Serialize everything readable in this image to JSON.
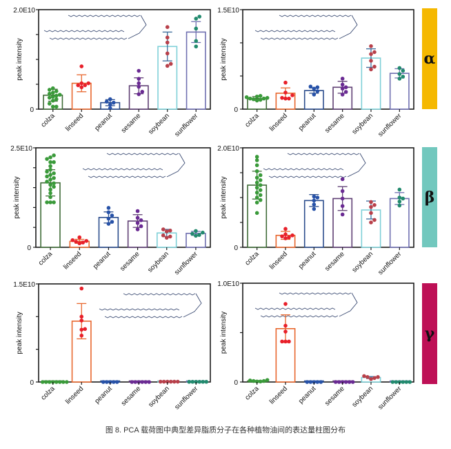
{
  "caption": "图 8. PCA 载荷图中典型差异脂质分子在各种植物油间的表达量柱图分布",
  "groups": [
    {
      "label": "α",
      "color": "#F5B800"
    },
    {
      "label": "β",
      "color": "#72C8BE"
    },
    {
      "label": "γ",
      "color": "#BE1056"
    }
  ],
  "categories": [
    "colza",
    "linseed",
    "peanut",
    "sesame",
    "soybean",
    "sunflower"
  ],
  "category_colors": {
    "bar_outline": [
      "#3E6B36",
      "#E8662C",
      "#2A4C8C",
      "#5E3E73",
      "#7FD0D8",
      "#6F6FB0"
    ],
    "points": [
      "#3A9A3A",
      "#E8202A",
      "#2752A8",
      "#6A2A93",
      "#B8404A",
      "#228A6E"
    ]
  },
  "chart_data": [
    {
      "type": "bar",
      "group": "α",
      "row": 0,
      "col": 0,
      "ylabel": "peak intensity",
      "ylim": [
        0,
        20000000000.0
      ],
      "ytick_labels": [
        "0",
        "2.0E10"
      ],
      "yticks": 4,
      "categories": [
        "colza",
        "linseed",
        "peanut",
        "sesame",
        "soybean",
        "sunflower"
      ],
      "values": [
        2800000000.0,
        5200000000.0,
        1300000000.0,
        4700000000.0,
        12600000000.0,
        15500000000.0
      ],
      "errors": [
        1200000000.0,
        1700000000.0,
        600000000.0,
        1600000000.0,
        2900000000.0,
        2100000000.0
      ],
      "points": [
        [
          1100000000.0,
          1700000000.0,
          2000000000.0,
          2300000000.0,
          2500000000.0,
          2700000000.0,
          2900000000.0,
          3100000000.0,
          3300000000.0,
          3600000000.0,
          3900000000.0,
          4200000000.0,
          500000000.0,
          500000000.0
        ],
        [
          4400000000.0,
          4800000000.0,
          4800000000.0,
          5200000000.0,
          5200000000.0,
          8600000000.0
        ],
        [
          200000000.0,
          900000000.0,
          1300000000.0,
          1500000000.0,
          2000000000.0
        ],
        [
          3000000000.0,
          3500000000.0,
          4500000000.0,
          5200000000.0,
          6100000000.0,
          7700000000.0
        ],
        [
          8700000000.0,
          9100000000.0,
          11200000000.0,
          13400000000.0,
          14400000000.0,
          16500000000.0
        ],
        [
          12600000000.0,
          13700000000.0,
          16200000000.0,
          18200000000.0,
          18600000000.0
        ]
      ]
    },
    {
      "type": "bar",
      "group": "α",
      "row": 0,
      "col": 1,
      "ylabel": "peak intensity",
      "ylim": [
        0,
        15000000000.0
      ],
      "ytick_labels": [
        "0",
        "1.5E10"
      ],
      "yticks": 3,
      "categories": [
        "colza",
        "linseed",
        "peanut",
        "sesame",
        "soybean",
        "sunflower"
      ],
      "values": [
        1600000000.0,
        2400000000.0,
        2800000000.0,
        3300000000.0,
        7700000000.0,
        5400000000.0
      ],
      "errors": [
        300000000.0,
        800000000.0,
        400000000.0,
        900000000.0,
        1400000000.0,
        700000000.0
      ],
      "points": [
        [
          1300000000.0,
          1400000000.0,
          1500000000.0,
          1600000000.0,
          1600000000.0,
          1700000000.0,
          1800000000.0,
          1900000000.0,
          2000000000.0
        ],
        [
          1600000000.0,
          1700000000.0,
          2100000000.0,
          2500000000.0,
          4000000000.0,
          1600000000.0
        ],
        [
          2200000000.0,
          2700000000.0,
          3100000000.0,
          3300000000.0,
          3400000000.0
        ],
        [
          2200000000.0,
          2600000000.0,
          3100000000.0,
          3300000000.0,
          3700000000.0,
          4600000000.0
        ],
        [
          6000000000.0,
          6400000000.0,
          7300000000.0,
          8300000000.0,
          8600000000.0,
          9500000000.0
        ],
        [
          4600000000.0,
          4900000000.0,
          5300000000.0,
          5800000000.0,
          6200000000.0
        ]
      ]
    },
    {
      "type": "bar",
      "group": "β",
      "row": 1,
      "col": 0,
      "ylabel": "peak intensity",
      "ylim": [
        0,
        25000000000.0
      ],
      "ytick_labels": [
        "0",
        "2.5E10"
      ],
      "yticks": 5,
      "categories": [
        "colza",
        "linseed",
        "peanut",
        "sesame",
        "soybean",
        "sunflower"
      ],
      "values": [
        16200000000.0,
        1500000000.0,
        7500000000.0,
        6600000000.0,
        3600000000.0,
        3500000000.0
      ],
      "errors": [
        3300000000.0,
        500000000.0,
        1400000000.0,
        1600000000.0,
        900000000.0,
        500000000.0
      ],
      "points": [
        [
          11300000000.0,
          11300000000.0,
          11300000000.0,
          12600000000.0,
          13600000000.0,
          14500000000.0,
          15200000000.0,
          15700000000.0,
          16100000000.0,
          16500000000.0,
          17000000000.0,
          17400000000.0,
          17800000000.0,
          18200000000.0,
          18600000000.0,
          19000000000.0,
          19500000000.0,
          20400000000.0,
          21400000000.0,
          21400000000.0,
          22200000000.0,
          22600000000.0,
          23100000000.0
        ],
        [
          1000000000.0,
          1200000000.0,
          1400000000.0,
          1600000000.0,
          1800000000.0,
          2500000000.0
        ],
        [
          5900000000.0,
          6400000000.0,
          7200000000.0,
          8000000000.0,
          8800000000.0,
          9900000000.0
        ],
        [
          4500000000.0,
          5300000000.0,
          6100000000.0,
          6800000000.0,
          7400000000.0,
          9100000000.0
        ],
        [
          2400000000.0,
          2700000000.0,
          3000000000.0,
          4000000000.0,
          4200000000.0,
          4500000000.0
        ],
        [
          2900000000.0,
          3100000000.0,
          3400000000.0,
          3700000000.0,
          4100000000.0
        ]
      ]
    },
    {
      "type": "bar",
      "group": "β",
      "row": 1,
      "col": 1,
      "ylabel": "peak intensity",
      "ylim": [
        0,
        20000000000.0
      ],
      "ytick_labels": [
        "0",
        "2.0E10"
      ],
      "yticks": 4,
      "categories": [
        "colza",
        "linseed",
        "peanut",
        "sesame",
        "soybean",
        "sunflower"
      ],
      "values": [
        12500000000.0,
        2400000000.0,
        9400000000.0,
        9800000000.0,
        7500000000.0,
        9800000000.0
      ],
      "errors": [
        2800000000.0,
        800000000.0,
        1200000000.0,
        2400000000.0,
        1800000000.0,
        1200000000.0
      ],
      "points": [
        [
          6900000000.0,
          9000000000.0,
          9500000000.0,
          10000000000.0,
          10500000000.0,
          11000000000.0,
          11500000000.0,
          12000000000.0,
          12500000000.0,
          13000000000.0,
          13500000000.0,
          14000000000.0,
          14500000000.0,
          15300000000.0,
          16500000000.0,
          17500000000.0,
          18200000000.0
        ],
        [
          1800000000.0,
          2000000000.0,
          2200000000.0,
          2400000000.0,
          2600000000.0,
          3700000000.0
        ],
        [
          7700000000.0,
          8600000000.0,
          9400000000.0,
          10000000000.0,
          10200000000.0
        ],
        [
          6600000000.0,
          8300000000.0,
          9800000000.0,
          11300000000.0,
          13700000000.0
        ],
        [
          5000000000.0,
          5500000000.0,
          6900000000.0,
          8100000000.0,
          8500000000.0,
          9100000000.0
        ],
        [
          8400000000.0,
          9200000000.0,
          9800000000.0,
          10000000000.0,
          11600000000.0
        ]
      ]
    },
    {
      "type": "bar",
      "group": "γ",
      "row": 2,
      "col": 0,
      "ylabel": "peak intensity",
      "ylim": [
        0,
        15000000000.0
      ],
      "ytick_labels": [
        "0",
        "1.5E10"
      ],
      "yticks": 3,
      "categories": [
        "colza",
        "linseed",
        "peanut",
        "sesame",
        "soybean",
        "sunflower"
      ],
      "values": [
        20000000.0,
        9300000000.0,
        20000000.0,
        20000000.0,
        50000000.0,
        30000000.0
      ],
      "errors": [
        10000000.0,
        2700000000.0,
        10000000.0,
        10000000.0,
        20000000.0,
        10000000.0
      ],
      "points": [
        [
          0.0,
          0.0,
          0.0,
          0.0,
          0.0,
          0.0,
          0.0,
          0.0
        ],
        [
          7100000000.0,
          8000000000.0,
          8100000000.0,
          9400000000.0,
          10000000000.0,
          14300000000.0
        ],
        [
          0.0,
          0.0,
          0.0,
          0.0,
          0.0
        ],
        [
          0.0,
          0.0,
          0.0,
          0.0,
          0.0,
          0.0
        ],
        [
          50000000.0,
          50000000.0,
          50000000.0,
          50000000.0,
          50000000.0,
          50000000.0
        ],
        [
          30000000.0,
          30000000.0,
          30000000.0,
          30000000.0,
          30000000.0,
          30000000.0
        ]
      ]
    },
    {
      "type": "bar",
      "group": "γ",
      "row": 2,
      "col": 1,
      "ylabel": "peak intensity",
      "ylim": [
        0,
        10000000000.0
      ],
      "ytick_labels": [
        "0",
        "1.0E10"
      ],
      "yticks": 2,
      "categories": [
        "colza",
        "linseed",
        "peanut",
        "sesame",
        "soybean",
        "sunflower"
      ],
      "values": [
        100000000.0,
        5400000000.0,
        0.0,
        0.0,
        450000000.0,
        0.0
      ],
      "errors": [
        50000000.0,
        1400000000.0,
        0.0,
        0.0,
        100000000.0,
        0.0
      ],
      "points": [
        [
          50000000.0,
          100000000.0,
          150000000.0,
          100000000.0,
          50000000.0,
          200000000.0
        ],
        [
          4100000000.0,
          4100000000.0,
          4100000000.0,
          5100000000.0,
          5700000000.0,
          7900000000.0
        ],
        [
          0.0,
          0.0,
          0.0,
          0.0,
          0.0
        ],
        [
          0.0,
          0.0,
          0.0,
          0.0,
          0.0,
          0.0
        ],
        [
          300000000.0,
          400000000.0,
          500000000.0,
          500000000.0,
          600000000.0
        ],
        [
          0.0,
          0.0,
          0.0,
          0.0,
          0.0,
          0.0
        ]
      ]
    }
  ]
}
